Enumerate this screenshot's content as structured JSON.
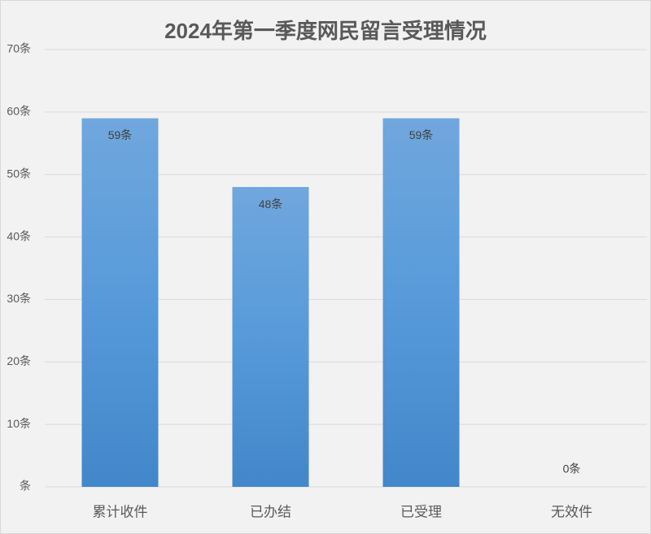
{
  "chart_data": {
    "type": "bar",
    "title": "2024年第一季度网民留言受理情况",
    "categories": [
      "累计收件",
      "已办结",
      "已受理",
      "无效件"
    ],
    "values": [
      59,
      48,
      59,
      0
    ],
    "value_labels": [
      "59条",
      "48条",
      "59条",
      "0条"
    ],
    "color": "#5b9bd5",
    "ylim": [
      0,
      70
    ],
    "yticks": [
      {
        "value": 0,
        "label": "条"
      },
      {
        "value": 10,
        "label": "10条"
      },
      {
        "value": 20,
        "label": "20条"
      },
      {
        "value": 30,
        "label": "30条"
      },
      {
        "value": 40,
        "label": "40条"
      },
      {
        "value": 50,
        "label": "50条"
      },
      {
        "value": 60,
        "label": "60条"
      },
      {
        "value": 70,
        "label": "70条"
      }
    ],
    "grid": true
  }
}
